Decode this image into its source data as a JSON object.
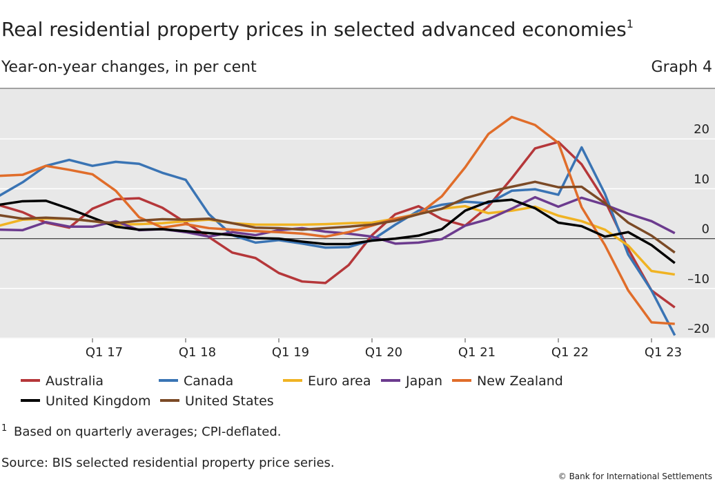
{
  "chart_data": {
    "type": "line",
    "title": "Real residential property prices in selected advanced economies",
    "title_note": "1",
    "subtitle": "Year-on-year changes, in per cent",
    "graph_label": "Graph 4",
    "categories": [
      null,
      null,
      null,
      null,
      "Q1 17",
      null,
      null,
      null,
      "Q1 18",
      null,
      null,
      null,
      "Q1 19",
      null,
      null,
      null,
      "Q1 20",
      null,
      null,
      null,
      "Q1 21",
      null,
      null,
      null,
      "Q1 22",
      null,
      null,
      null,
      "Q1 23",
      null
    ],
    "series": [
      {
        "name": "Australia",
        "color": "#b5373a",
        "values": [
          6.7,
          5.3,
          3.2,
          2.2,
          6,
          7.9,
          8.1,
          6.2,
          3.2,
          0.3,
          -2.8,
          -3.9,
          -6.9,
          -8.6,
          -8.9,
          -5.3,
          0.7,
          4.9,
          6.5,
          3.9,
          2.6,
          6.5,
          12.1,
          18.1,
          19.4,
          14.9,
          7.6,
          -2.1,
          -10.4,
          -13.8
        ]
      },
      {
        "name": "Canada",
        "color": "#3a74b4",
        "values": [
          8.6,
          11.3,
          14.6,
          15.8,
          14.6,
          15.4,
          15,
          13.2,
          11.8,
          4.9,
          0.7,
          -0.8,
          -0.3,
          -1,
          -1.8,
          -1.7,
          -0.3,
          2.8,
          5.6,
          6.8,
          7.4,
          7.1,
          9.6,
          9.9,
          8.8,
          18.3,
          9,
          -3.2,
          -10.4,
          -19.4
        ]
      },
      {
        "name": "Euro area",
        "color": "#f0b323",
        "values": [
          2.6,
          3.8,
          4,
          4,
          3.5,
          2.8,
          2.9,
          3.1,
          3.5,
          3.8,
          3.1,
          2.8,
          2.8,
          2.8,
          2.9,
          3.1,
          3.2,
          4,
          5,
          6,
          6.5,
          5.1,
          5.6,
          6.4,
          4.6,
          3.5,
          1.8,
          -1.4,
          -6.5,
          -7.2
        ]
      },
      {
        "name": "Japan",
        "color": "#6c3b8e",
        "values": [
          1.8,
          1.7,
          3.3,
          2.4,
          2.4,
          3.5,
          1.7,
          1.9,
          1.3,
          0.4,
          1.3,
          0.7,
          1.7,
          2.1,
          1.4,
          1,
          0.4,
          -1,
          -0.8,
          -0.1,
          2.6,
          3.9,
          6,
          8.3,
          6.4,
          8.2,
          6.8,
          5,
          3.5,
          1.1
        ]
      },
      {
        "name": "New Zealand",
        "color": "#e06d2a",
        "values": [
          12.6,
          12.8,
          14.6,
          13.8,
          12.9,
          9.6,
          4.3,
          2.2,
          2.9,
          2.1,
          1.8,
          1.5,
          1.3,
          1,
          0.4,
          1.3,
          2.6,
          4,
          4.9,
          8.5,
          14.3,
          21,
          24.4,
          22.8,
          19.2,
          6.3,
          -1.3,
          -10.4,
          -16.8,
          -17.1
        ]
      },
      {
        "name": "United Kingdom",
        "color": "#000000",
        "values": [
          6.8,
          7.5,
          7.6,
          6,
          4.2,
          2.4,
          1.8,
          1.9,
          1.5,
          1.1,
          0.7,
          0.1,
          0,
          -0.6,
          -1.1,
          -1.1,
          -0.4,
          0,
          0.6,
          1.9,
          5.6,
          7.4,
          7.8,
          6.1,
          3.2,
          2.5,
          0.4,
          1.3,
          -1.3,
          -4.9
        ]
      },
      {
        "name": "United States",
        "color": "#7b4a26",
        "values": [
          4.7,
          4,
          4.2,
          4,
          3.5,
          3.1,
          3.6,
          3.9,
          3.8,
          4,
          3.1,
          2.2,
          2.1,
          1.8,
          2.1,
          2.4,
          2.8,
          3.6,
          4.9,
          6,
          8.1,
          9.4,
          10.4,
          11.4,
          10.3,
          10.4,
          7.1,
          3.2,
          0.6,
          -2.8
        ]
      }
    ],
    "ylim": [
      -20,
      30
    ],
    "yticks": [
      {
        "value": -20,
        "label": "–20"
      },
      {
        "value": -10,
        "label": "–10"
      },
      0,
      10,
      20
    ],
    "grid": true,
    "footnote": {
      "marker": "1",
      "text": "Based on quarterly averages; CPI-deflated."
    },
    "source": "Source: BIS selected residential property price series.",
    "copyright": "© Bank for International Settlements"
  }
}
